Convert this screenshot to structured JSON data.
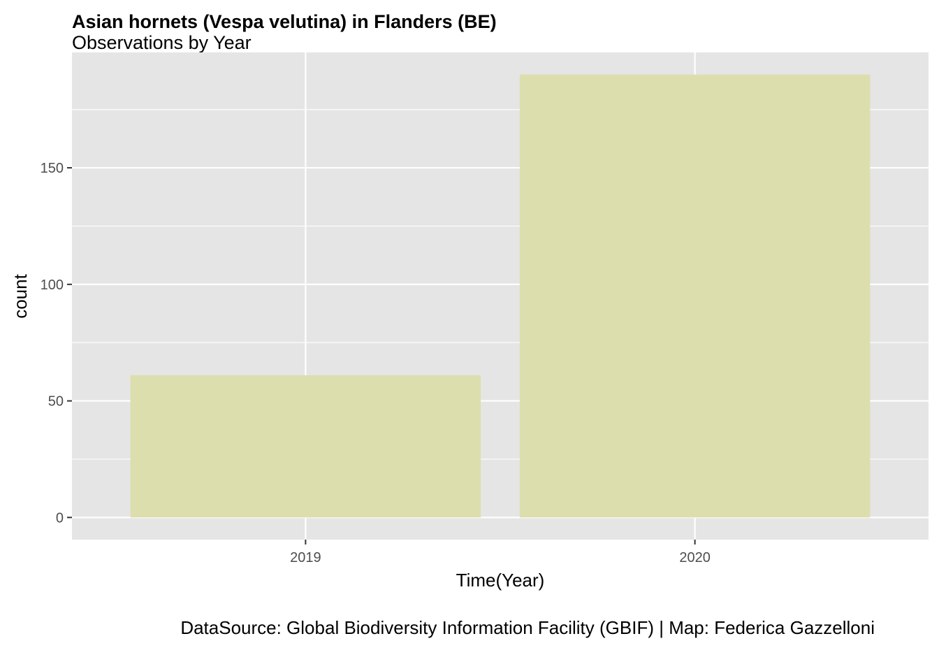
{
  "chart_data": {
    "type": "bar",
    "title": "Asian hornets (Vespa velutina) in Flanders (BE)",
    "subtitle": "Observations by Year",
    "xlabel": "Time(Year)",
    "ylabel": "count",
    "caption": "DataSource: Global Biodiversity Information Facility (GBIF) | Map: Federica Gazzelloni",
    "categories": [
      "2019",
      "2020"
    ],
    "values": [
      61,
      190
    ],
    "yticks": [
      0,
      50,
      100,
      150
    ],
    "ylim": [
      -9.5,
      199.5
    ],
    "grid": true,
    "bar_color": "#dcdfad",
    "panel_color": "#e5e5e5",
    "grid_color": "#ffffff"
  }
}
